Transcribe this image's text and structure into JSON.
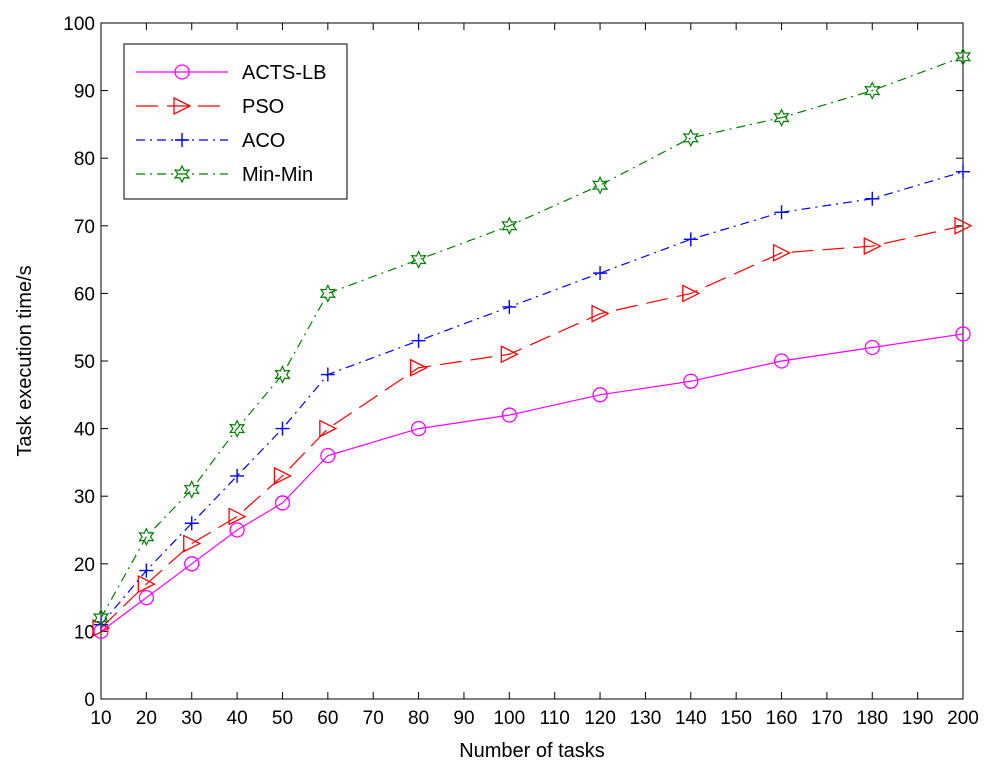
{
  "chart_data": {
    "type": "line",
    "xlabel": "Number of tasks",
    "ylabel": "Task execution time/s",
    "x_tick_labels": [
      "10",
      "20",
      "30",
      "40",
      "50",
      "60",
      "70",
      "80",
      "90",
      "100",
      "110",
      "120",
      "130",
      "140",
      "150",
      "160",
      "170",
      "180",
      "190",
      "200"
    ],
    "y_ticks": [
      0,
      10,
      20,
      30,
      40,
      50,
      60,
      70,
      80,
      90,
      100
    ],
    "ylim": [
      0,
      100
    ],
    "grid": false,
    "legend_position": "top-left",
    "series": [
      {
        "name": "ACTS-LB",
        "color": "#ff00ff",
        "marker": "circle",
        "line": "solid",
        "x": [
          10,
          20,
          30,
          40,
          50,
          60,
          80,
          100,
          120,
          140,
          160,
          180,
          200
        ],
        "y": [
          10,
          15,
          20,
          25,
          29,
          36,
          40,
          42,
          45,
          47,
          50,
          52,
          54
        ]
      },
      {
        "name": "PSO",
        "color": "#ff0000",
        "marker": "triangle-right",
        "line": "long-dash",
        "x": [
          10,
          20,
          30,
          40,
          50,
          60,
          80,
          100,
          120,
          140,
          160,
          180,
          200
        ],
        "y": [
          10.5,
          17,
          23,
          27,
          33,
          40,
          49,
          51,
          57,
          60,
          66,
          67,
          70
        ]
      },
      {
        "name": "ACO",
        "color": "#0000ff",
        "marker": "plus",
        "line": "dash-dot",
        "x": [
          10,
          20,
          30,
          40,
          50,
          60,
          80,
          100,
          120,
          140,
          160,
          180,
          200
        ],
        "y": [
          11,
          19,
          26,
          33,
          40,
          48,
          53,
          58,
          63,
          68,
          72,
          74,
          78
        ]
      },
      {
        "name": "Min-Min",
        "color": "#008000",
        "marker": "hexagram",
        "line": "dash-dot",
        "x": [
          10,
          20,
          30,
          40,
          50,
          60,
          80,
          100,
          120,
          140,
          160,
          180,
          200
        ],
        "y": [
          12,
          24,
          31,
          40,
          48,
          60,
          65,
          70,
          76,
          83,
          86,
          90,
          95
        ]
      }
    ]
  }
}
